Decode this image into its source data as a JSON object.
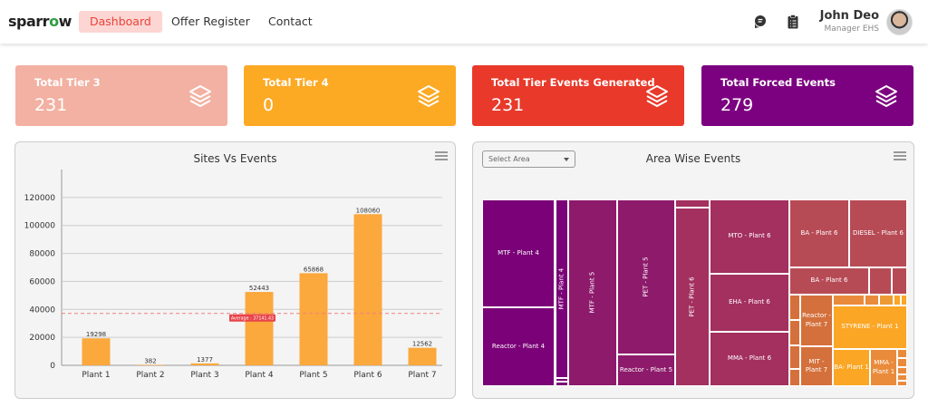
{
  "nav": {
    "logo": "sparrow",
    "links": [
      "Dashboard",
      "Offer Register",
      "Contact"
    ],
    "active": "Dashboard",
    "user_name": "John Deo",
    "user_role": "Manager EHS",
    "icons": [
      "chat-icon",
      "clipboard-icon"
    ]
  },
  "cards": [
    {
      "title": "Total Tier 3",
      "value": "231",
      "color": "#f2b1a2",
      "icon": "layers-icon"
    },
    {
      "title": "Total Tier 4",
      "value": "0",
      "color": "#fca924",
      "icon": "layers-icon"
    },
    {
      "title": "Total Tier Events Generated",
      "value": "231",
      "color": "#e8392a",
      "icon": "layers-icon"
    },
    {
      "title": "Total Forced Events",
      "value": "279",
      "color": "#7c0180",
      "icon": "layers-icon"
    }
  ],
  "chart_data": [
    {
      "type": "bar",
      "title": "Sites Vs Events",
      "categories": [
        "Plant 1",
        "Plant 2",
        "Plant 3",
        "Plant 4",
        "Plant 5",
        "Plant 6",
        "Plant 7"
      ],
      "values": [
        19298,
        382,
        1377,
        52443,
        65868,
        108060,
        12562
      ],
      "yticks": [
        "0",
        "20000",
        "40000",
        "60000",
        "80000",
        "100000",
        "120000"
      ],
      "ylim": [
        0,
        140000
      ],
      "average": 37141.43,
      "average_label": "Average : 37141.43",
      "bar_color": "#fba83c",
      "grid": true
    },
    {
      "type": "treemap",
      "title": "Area Wise Events",
      "select_placeholder": "Select Area",
      "labels": [
        "MTF - Plant 4",
        "Reactor - Plant 4",
        "MTF - Plant 4",
        "MTF - Plant 5",
        "PET - Plant 5",
        "Reactor - Plant 5",
        "PET - Plant 6",
        "MTO - Plant 6",
        "EHA - Plant 6",
        "MMA - Plant 6",
        "BA - Plant 6",
        "DIESEL - Plant 6",
        "BA - Plant 6",
        "Reactor - Plant 7",
        "MIT - Plant 7",
        "STYRENE - Plant 1",
        "BA- Plant 1",
        "MMA - Plant 1"
      ]
    }
  ]
}
